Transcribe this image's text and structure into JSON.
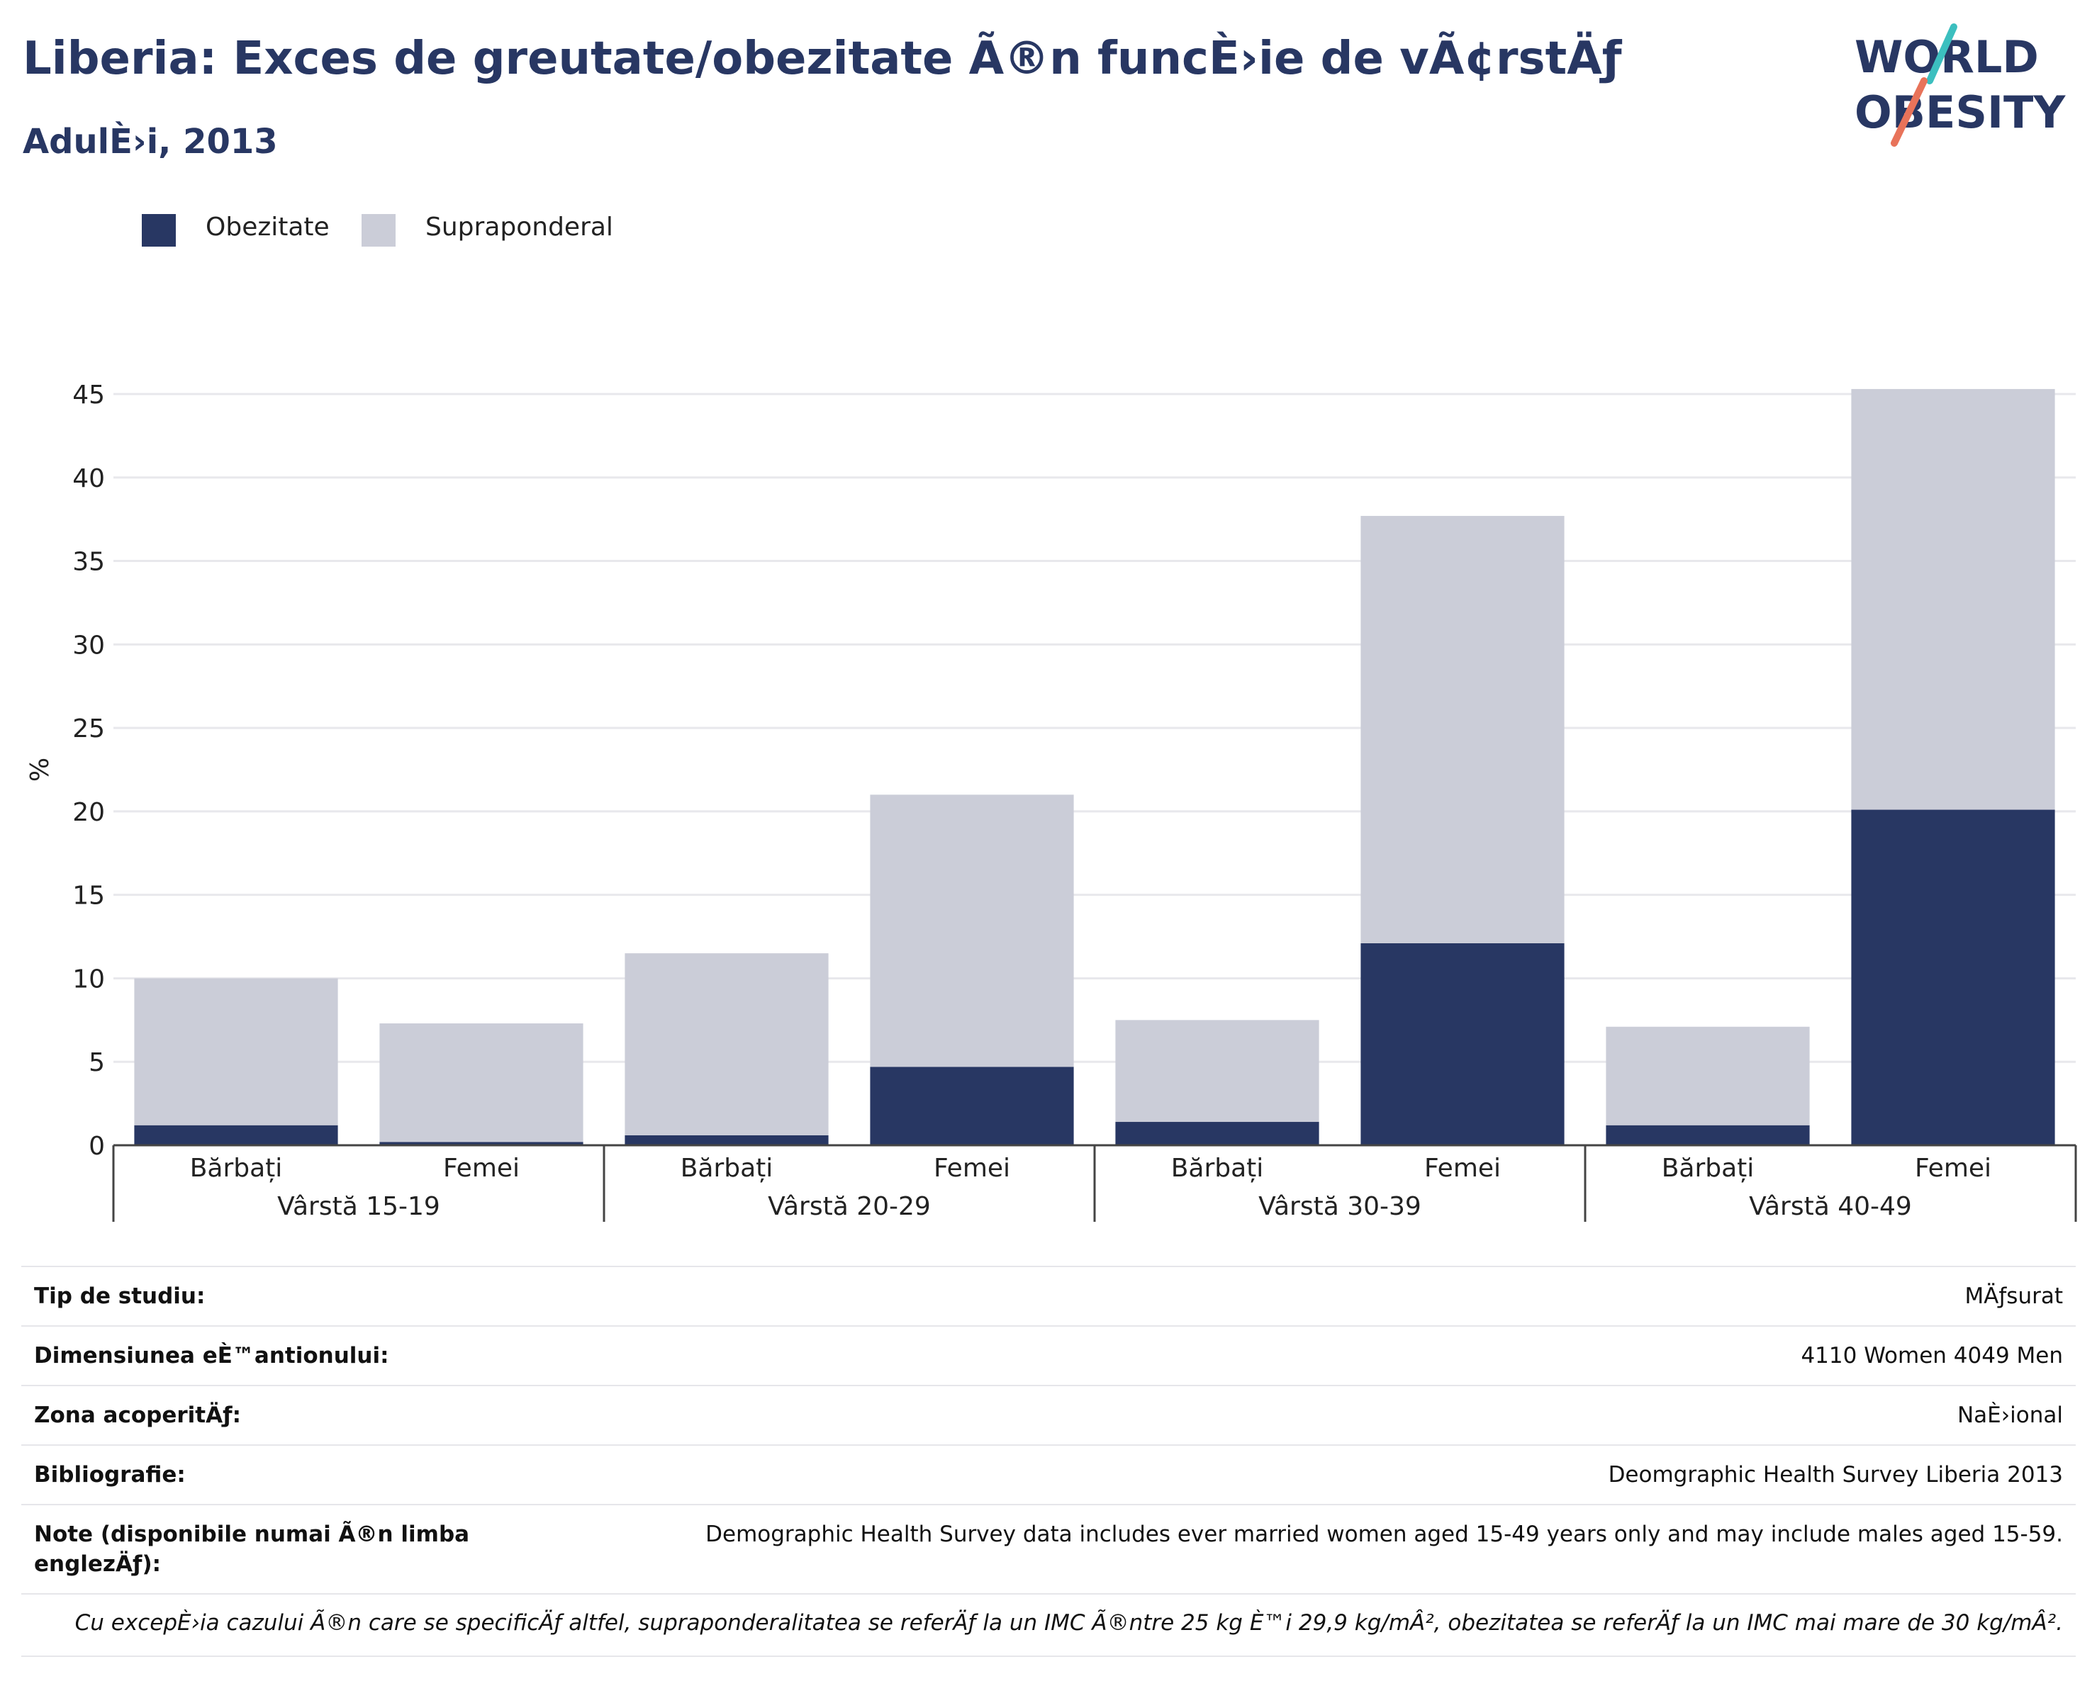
{
  "header": {
    "title": "Liberia: Exces de greutate/obezitate Ã®n funcÈ›ie de vÃ¢rstÄƒ",
    "subtitle": "AdulÈ›i, 2013"
  },
  "logo": {
    "line1": "WORLD",
    "line2": "OBESITY",
    "accent_teal": "#3cbfbf",
    "accent_coral": "#e8735a",
    "text_color": "#283763"
  },
  "legend": [
    {
      "label": "Obezitate",
      "color": "#283763"
    },
    {
      "label": "Supraponderal",
      "color": "#cbcdd8"
    }
  ],
  "chart_data": {
    "type": "bar",
    "stacked": true,
    "ylabel": "%",
    "ylim": [
      0,
      45
    ],
    "yticks": [
      0,
      5,
      10,
      15,
      20,
      25,
      30,
      35,
      40,
      45
    ],
    "grid": true,
    "legend_position": "top-left",
    "groups": [
      "Vârstă 15-19",
      "Vârstă 20-29",
      "Vârstă 30-39",
      "Vârstă 40-49"
    ],
    "categories": [
      "Bărbați",
      "Femei",
      "Bărbați",
      "Femei",
      "Bărbați",
      "Femei",
      "Bărbați",
      "Femei"
    ],
    "series": [
      {
        "name": "Obezitate",
        "color": "#283763",
        "values": [
          1.2,
          0.2,
          0.6,
          4.7,
          1.4,
          12.1,
          1.2,
          20.1
        ]
      },
      {
        "name": "Supraponderal",
        "color": "#cbcdd8",
        "values": [
          8.8,
          7.1,
          10.9,
          16.3,
          6.1,
          25.6,
          5.9,
          25.2
        ]
      }
    ]
  },
  "info": [
    {
      "label": "Tip de studiu:",
      "value": "MÄƒsurat"
    },
    {
      "label": "Dimensiunea eÈ™antionului:",
      "value": "4110 Women 4049 Men"
    },
    {
      "label": "Zona acoperitÄƒ:",
      "value": "NaÈ›ional"
    },
    {
      "label": "Bibliografie:",
      "value": "Deomgraphic Health Survey Liberia 2013"
    },
    {
      "label": "Note (disponibile numai Ã®n limba englezÄƒ):",
      "value": "Demographic Health Survey data includes ever married women aged 15-49 years only and may include males aged 15-59."
    }
  ],
  "footnote": "Cu excepÈ›ia cazului Ã®n care se specificÄƒ altfel, supraponderalitatea se referÄƒ la un IMC Ã®ntre 25 kg È™i 29,9 kg/mÂ², obezitatea se referÄƒ la un IMC mai mare de 30 kg/mÂ²."
}
